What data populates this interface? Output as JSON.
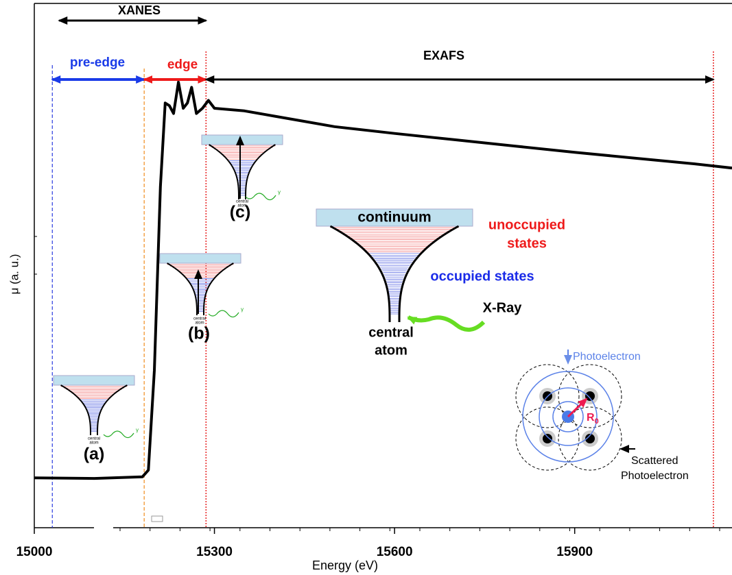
{
  "chart_data": {
    "type": "line",
    "x_label": "Energy (eV)",
    "y_label": "μ (a. u.)",
    "x": [
      15000,
      15100,
      15180,
      15190,
      15200,
      15210,
      15218,
      15225,
      15232,
      15240,
      15248,
      15255,
      15262,
      15270,
      15280,
      15290,
      15300,
      15350,
      15400,
      15450,
      15500,
      15600,
      15700,
      15800,
      15900,
      16000,
      16100,
      16162
    ],
    "values": [
      0.095,
      0.094,
      0.097,
      0.11,
      0.3,
      0.65,
      0.81,
      0.805,
      0.79,
      0.85,
      0.8,
      0.81,
      0.84,
      0.79,
      0.8,
      0.815,
      0.8,
      0.795,
      0.785,
      0.775,
      0.765,
      0.752,
      0.74,
      0.728,
      0.716,
      0.705,
      0.694,
      0.686
    ],
    "color": "#000000",
    "xlim": [
      15000,
      16162
    ],
    "ylim": [
      0,
      1
    ],
    "xticks": [
      15000,
      15300,
      15600,
      15900
    ],
    "markers": [
      {
        "x": 15030,
        "color": "#2a3be0"
      },
      {
        "x": 15183,
        "color": "#f08a1c"
      },
      {
        "x": 15286,
        "color": "#e82020"
      },
      {
        "x": 16131,
        "color": "#e82020"
      }
    ],
    "annotations": {
      "xanes": "XANES",
      "pre_edge": "pre-edge",
      "edge": "edge",
      "exafs": "EXAFS",
      "a": "(a)",
      "b": "(b)",
      "c": "(c)",
      "continuum": "continuum",
      "unoccupied": [
        "unoccupied",
        "states"
      ],
      "occupied": "occupied states",
      "xray": "X-Ray",
      "central_atom": [
        "central",
        "atom"
      ],
      "gamma": "γ",
      "photoelectron": "Photoelectron",
      "scattered": [
        "Scattered",
        "Photoelectron"
      ],
      "r": "R",
      "r_sub": "0"
    }
  }
}
